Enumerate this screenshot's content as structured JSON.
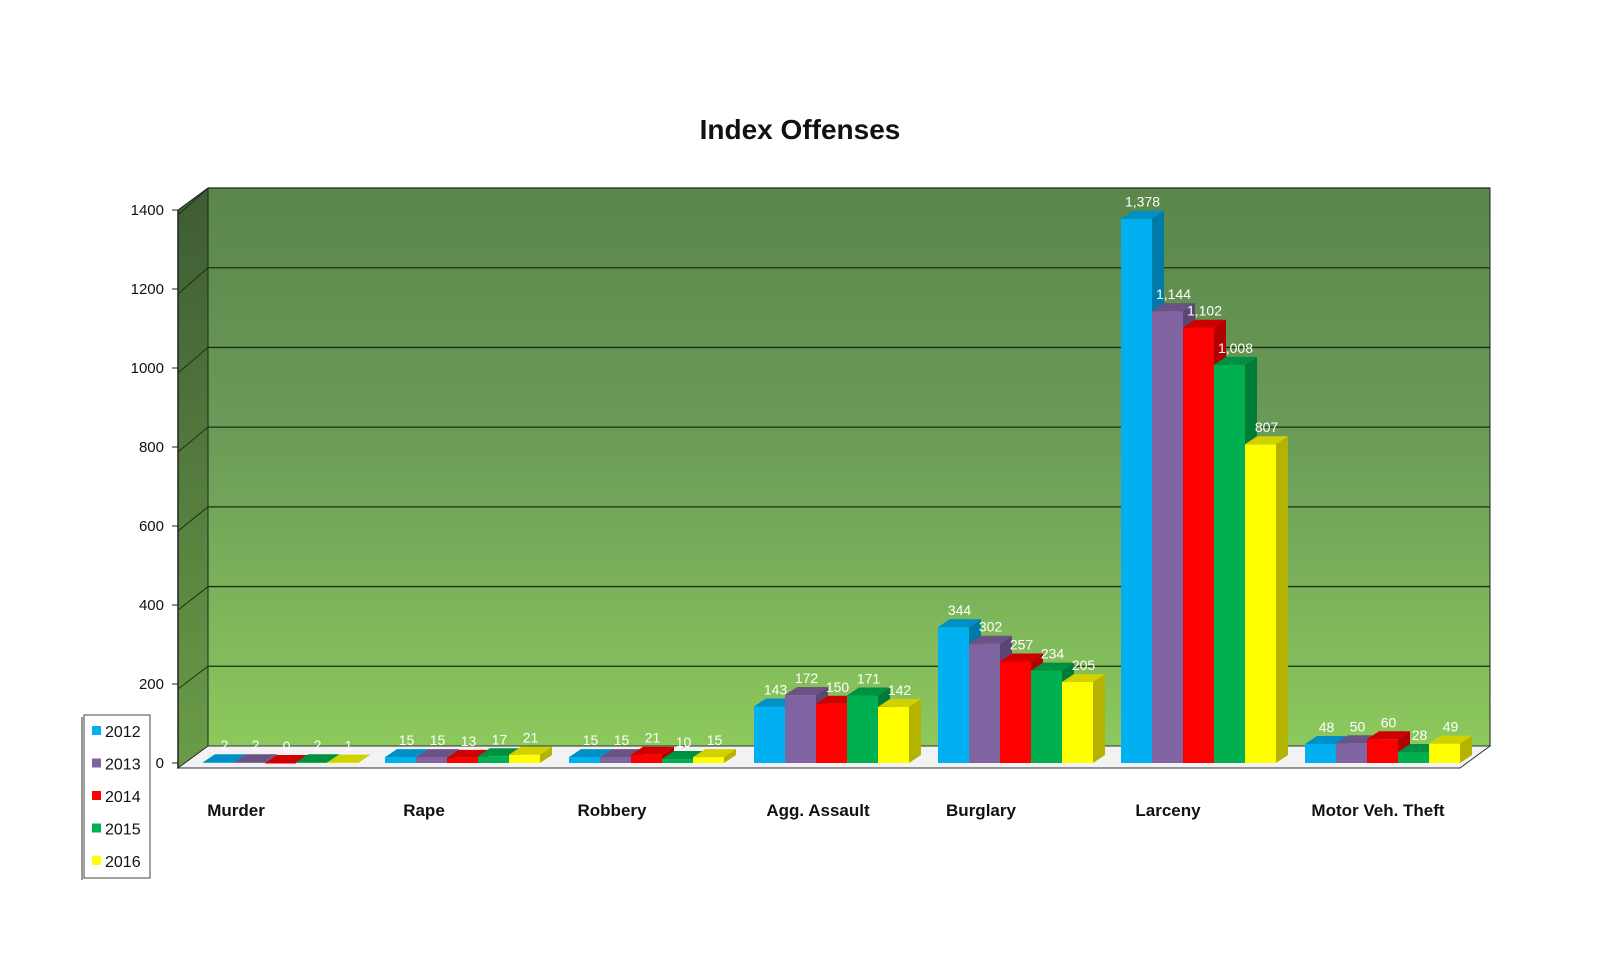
{
  "chart_data": {
    "type": "bar",
    "title": "Index Offenses",
    "categories": [
      "Murder",
      "Rape",
      "Robbery",
      "Agg. Assault",
      "Burglary",
      "Larceny",
      "Motor Veh. Theft"
    ],
    "series": [
      {
        "name": "2012",
        "color": "#00b0f0",
        "values": [
          2,
          15,
          15,
          143,
          344,
          1378,
          48
        ],
        "labels": [
          "2",
          "15",
          "15",
          "143",
          "344",
          "1,378",
          "48"
        ]
      },
      {
        "name": "2013",
        "color": "#8064a2",
        "values": [
          2,
          15,
          15,
          172,
          302,
          1144,
          50
        ],
        "labels": [
          "2",
          "15",
          "15",
          "172",
          "302",
          "1,144",
          "50"
        ]
      },
      {
        "name": "2014",
        "color": "#ff0000",
        "values": [
          0,
          13,
          21,
          150,
          257,
          1102,
          60
        ],
        "labels": [
          "0",
          "13",
          "21",
          "150",
          "257",
          "1,102",
          "60"
        ]
      },
      {
        "name": "2015",
        "color": "#00b050",
        "values": [
          2,
          17,
          10,
          171,
          234,
          1008,
          28
        ],
        "labels": [
          "2",
          "17",
          "10",
          "171",
          "234",
          "1,008",
          "28"
        ]
      },
      {
        "name": "2016",
        "color": "#ffff00",
        "values": [
          1,
          21,
          15,
          142,
          205,
          807,
          49
        ],
        "labels": [
          "1",
          "21",
          "15",
          "142",
          "205",
          "807",
          "49"
        ]
      }
    ],
    "ylim": [
      0,
      1400
    ],
    "yticks": [
      "0",
      "200",
      "400",
      "600",
      "800",
      "1000",
      "1200",
      "1400"
    ],
    "ytick_values": [
      0,
      200,
      400,
      600,
      800,
      1000,
      1200,
      1400
    ],
    "grid": true,
    "legend_position": "bottom-left",
    "background": "green-gradient"
  }
}
